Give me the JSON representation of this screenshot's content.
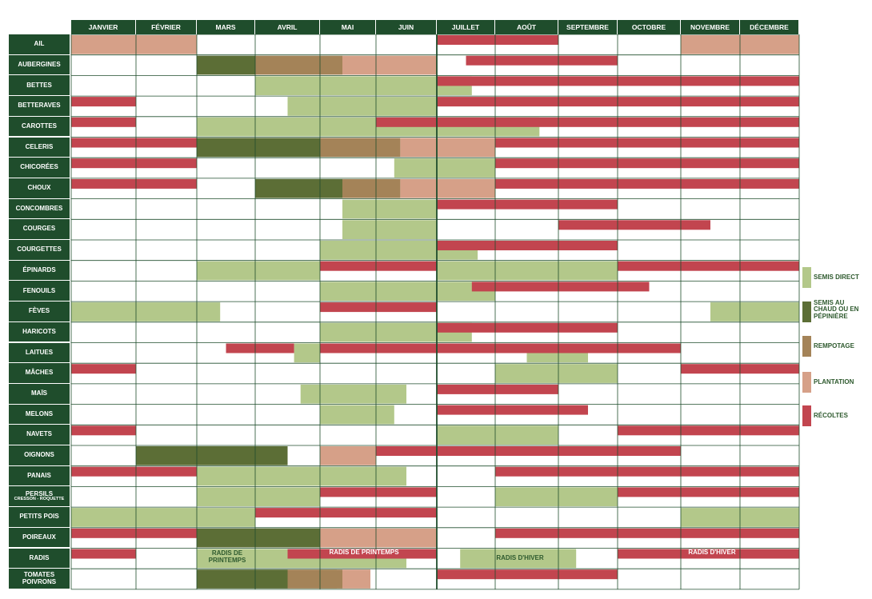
{
  "colors": {
    "semis_direct": "#b3c88a",
    "semis_chaud": "#5c6e36",
    "rempotage": "#a48358",
    "plantation": "#d6a088",
    "recolte": "#c2454f",
    "header_bg": "#1f4d2c"
  },
  "months": [
    "JANVIER",
    "FÉVRIER",
    "MARS",
    "AVRIL",
    "MAI",
    "JUIN",
    "JUILLET",
    "AOÛT",
    "SEPTEMBRE",
    "OCTOBRE",
    "NOVEMBRE",
    "DÉCEMBRE"
  ],
  "rows": [
    {
      "label": "AIL"
    },
    {
      "label": "AUBERGINES"
    },
    {
      "label": "BETTES"
    },
    {
      "label": "BETTERAVES"
    },
    {
      "label": "CAROTTES"
    },
    {
      "label": "CELERIS"
    },
    {
      "label": "CHICORÉES"
    },
    {
      "label": "CHOUX"
    },
    {
      "label": "CONCOMBRES"
    },
    {
      "label": "COURGES"
    },
    {
      "label": "COURGETTES"
    },
    {
      "label": "ÉPINARDS"
    },
    {
      "label": "FENOUILS"
    },
    {
      "label": "FÈVES"
    },
    {
      "label": "HARICOTS"
    },
    {
      "label": "LAITUES"
    },
    {
      "label": "MÂCHES"
    },
    {
      "label": "MAÏS"
    },
    {
      "label": "MELONS"
    },
    {
      "label": "NAVETS"
    },
    {
      "label": "OIGNONS"
    },
    {
      "label": "PANAIS"
    },
    {
      "label": "PERSILS",
      "sub": "CRESSON - ROQUETTE"
    },
    {
      "label": "PETITS POIS"
    },
    {
      "label": "POIREAUX"
    },
    {
      "label": "RADIS"
    },
    {
      "label": "TOMATES",
      "line2": "POIVRONS"
    }
  ],
  "legend": [
    {
      "key": "semis_direct",
      "label": "SEMIS DIRECT"
    },
    {
      "key": "semis_chaud",
      "label": "SEMIS AU CHAUD OU EN PÉPINIÈRE"
    },
    {
      "key": "rempotage",
      "label": "REMPOTAGE"
    },
    {
      "key": "plantation",
      "label": "PLANTATION"
    },
    {
      "key": "recolte",
      "label": "RÉCOLTES"
    }
  ],
  "notes": {
    "radis_printemps_1": "RADIS DE PRINTEMPS",
    "radis_printemps_2": "RADIS DE PRINTEMPS",
    "radis_hiver_1": "RADIS D'HIVER",
    "radis_hiver_2": "RADIS D'HIVER"
  },
  "chart_data": {
    "type": "table",
    "title": "",
    "x_unit": "month",
    "categories": [
      "AIL",
      "AUBERGINES",
      "BETTES",
      "BETTERAVES",
      "CAROTTES",
      "CELERIS",
      "CHICORÉES",
      "CHOUX",
      "CONCOMBRES",
      "COURGES",
      "COURGETTES",
      "ÉPINARDS",
      "FENOUILS",
      "FÈVES",
      "HARICOTS",
      "LAITUES",
      "MÂCHES",
      "MAÏS",
      "MELONS",
      "NAVETS",
      "OIGNONS",
      "PANAIS",
      "PERSILS",
      "PETITS POIS",
      "POIREAUX",
      "RADIS",
      "TOMATES / POIVRONS"
    ],
    "series": [
      {
        "name": "SEMIS DIRECT",
        "key": "semis_direct",
        "spans": [
          [
            2,
            3,
            6.6
          ],
          [
            3,
            3.5,
            6
          ],
          [
            4,
            2,
            7.7
          ],
          [
            6,
            5.3,
            7
          ],
          [
            8,
            4.4,
            6
          ],
          [
            9,
            4.4,
            6
          ],
          [
            10,
            4,
            6
          ],
          [
            10,
            6,
            6.7
          ],
          [
            11,
            2,
            4
          ],
          [
            11,
            6,
            9
          ],
          [
            12,
            4,
            7
          ],
          [
            13,
            0,
            2.4
          ],
          [
            13,
            10.5,
            12
          ],
          [
            14,
            4,
            6
          ],
          [
            14,
            6,
            6.6
          ],
          [
            15,
            3.6,
            4
          ],
          [
            15,
            7.5,
            8.5
          ],
          [
            16,
            7,
            9
          ],
          [
            17,
            3.7,
            5.5
          ],
          [
            18,
            4,
            5.3
          ],
          [
            19,
            6,
            8
          ],
          [
            21,
            2,
            5.5
          ],
          [
            22,
            2,
            4
          ],
          [
            22,
            7,
            9
          ],
          [
            23,
            0,
            3
          ],
          [
            23,
            10,
            12
          ],
          [
            25,
            2,
            5.5
          ],
          [
            25,
            6.4,
            8.3
          ],
          [
            26,
            4,
            4.3
          ]
        ]
      },
      {
        "name": "SEMIS AU CHAUD OU EN PÉPINIÈRE",
        "key": "semis_chaud",
        "spans": [
          [
            1,
            2,
            3
          ],
          [
            5,
            2,
            4
          ],
          [
            7,
            3,
            4.4
          ],
          [
            20,
            1,
            3.5
          ],
          [
            24,
            2,
            4
          ],
          [
            26,
            2,
            3.5
          ]
        ]
      },
      {
        "name": "REMPOTAGE",
        "key": "rempotage",
        "spans": [
          [
            1,
            3,
            4.4
          ],
          [
            5,
            4,
            5.4
          ],
          [
            7,
            4.4,
            5.4
          ],
          [
            26,
            3.5,
            4.4
          ]
        ]
      },
      {
        "name": "PLANTATION",
        "key": "plantation",
        "spans": [
          [
            0,
            0,
            2
          ],
          [
            0,
            10,
            12
          ],
          [
            1,
            4.4,
            6
          ],
          [
            5,
            5.4,
            7
          ],
          [
            7,
            5.4,
            7
          ],
          [
            20,
            4,
            5
          ],
          [
            24,
            4,
            6
          ],
          [
            26,
            4.4,
            4.9
          ]
        ]
      },
      {
        "name": "RÉCOLTES",
        "key": "recolte",
        "spans": [
          [
            0,
            6,
            8
          ],
          [
            1,
            6.5,
            9
          ],
          [
            2,
            6,
            12
          ],
          [
            3,
            0,
            1
          ],
          [
            3,
            6,
            12
          ],
          [
            4,
            0,
            1
          ],
          [
            4,
            5,
            12
          ],
          [
            5,
            0,
            2
          ],
          [
            5,
            7,
            12
          ],
          [
            6,
            0,
            2
          ],
          [
            6,
            7,
            12
          ],
          [
            7,
            0,
            2
          ],
          [
            7,
            7,
            12
          ],
          [
            8,
            6,
            9
          ],
          [
            9,
            8,
            10.5
          ],
          [
            10,
            6,
            9
          ],
          [
            11,
            4,
            6
          ],
          [
            11,
            9,
            12
          ],
          [
            12,
            6.6,
            9.5
          ],
          [
            13,
            4,
            6
          ],
          [
            14,
            6,
            9
          ],
          [
            15,
            2.5,
            3.6
          ],
          [
            15,
            4,
            10
          ],
          [
            16,
            0,
            1
          ],
          [
            16,
            10,
            12
          ],
          [
            17,
            6,
            8
          ],
          [
            18,
            6,
            8.5
          ],
          [
            19,
            0,
            1
          ],
          [
            19,
            9,
            12
          ],
          [
            20,
            5,
            10
          ],
          [
            21,
            0,
            2
          ],
          [
            21,
            7,
            12
          ],
          [
            22,
            4,
            6
          ],
          [
            22,
            9,
            12
          ],
          [
            23,
            3,
            6
          ],
          [
            24,
            0,
            2
          ],
          [
            24,
            7,
            12
          ],
          [
            25,
            0,
            1
          ],
          [
            25,
            3.5,
            6
          ],
          [
            25,
            9,
            12
          ],
          [
            26,
            6,
            9
          ]
        ]
      }
    ]
  }
}
